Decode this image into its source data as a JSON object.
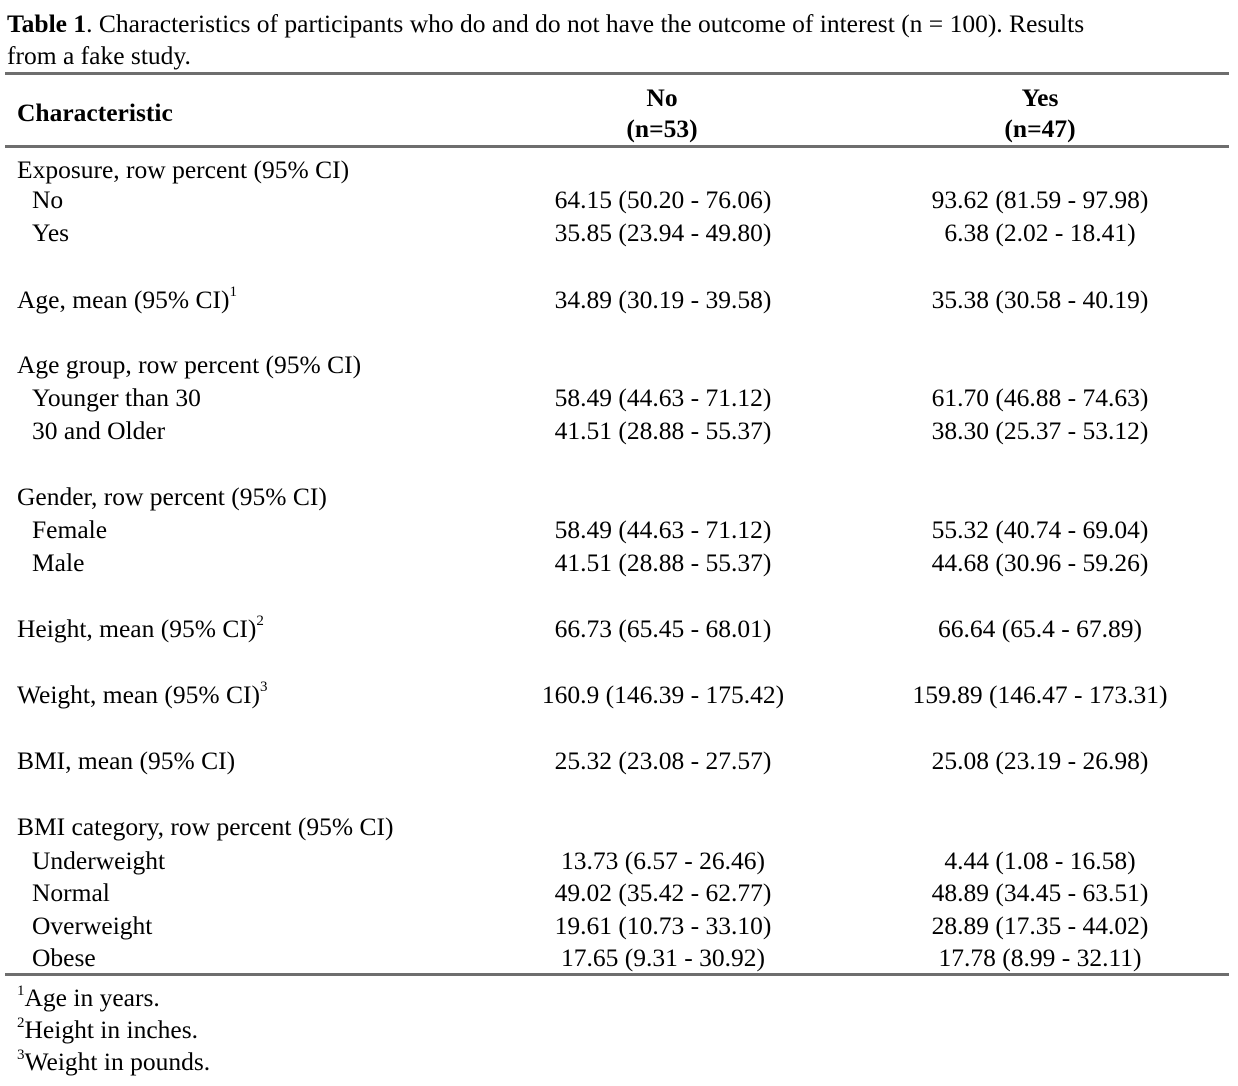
{
  "caption": {
    "label": "Table 1",
    "text_line1": ". Characteristics of participants who do and do not have the outcome of interest (n = 100). Results",
    "text_line2": "from a fake study."
  },
  "header": {
    "characteristic": "Characteristic",
    "no_label": "No",
    "no_n": "(n=53)",
    "yes_label": "Yes",
    "yes_n": "(n=47)"
  },
  "rows": [
    {
      "label": "Exposure, row percent (95% CI)",
      "sup": "",
      "no": "",
      "yes": ""
    },
    {
      "label": "No",
      "sup": "",
      "no": "64.15 (50.20 - 76.06)",
      "yes": "93.62 (81.59 - 97.98)"
    },
    {
      "label": "Yes",
      "sup": "",
      "no": "35.85 (23.94 - 49.80)",
      "yes": "6.38 (2.02 - 18.41)"
    },
    {
      "label": "Age, mean (95% CI)",
      "sup": "1",
      "no": "34.89 (30.19 - 39.58)",
      "yes": "35.38 (30.58 - 40.19)"
    },
    {
      "label": "Age group, row percent (95% CI)",
      "sup": "",
      "no": "",
      "yes": ""
    },
    {
      "label": "Younger than 30",
      "sup": "",
      "no": "58.49 (44.63 - 71.12)",
      "yes": "61.70 (46.88 - 74.63)"
    },
    {
      "label": "30 and Older",
      "sup": "",
      "no": "41.51 (28.88 - 55.37)",
      "yes": "38.30 (25.37 - 53.12)"
    },
    {
      "label": "Gender, row percent (95% CI)",
      "sup": "",
      "no": "",
      "yes": ""
    },
    {
      "label": "Female",
      "sup": "",
      "no": "58.49 (44.63 - 71.12)",
      "yes": "55.32 (40.74 - 69.04)"
    },
    {
      "label": "Male",
      "sup": "",
      "no": "41.51 (28.88 - 55.37)",
      "yes": "44.68 (30.96 - 59.26)"
    },
    {
      "label": "Height, mean (95% CI)",
      "sup": "2",
      "no": "66.73 (65.45 - 68.01)",
      "yes": "66.64 (65.4 - 67.89)"
    },
    {
      "label": "Weight, mean (95% CI)",
      "sup": "3",
      "no": "160.9 (146.39 - 175.42)",
      "yes": "159.89 (146.47 - 173.31)"
    },
    {
      "label": "BMI, mean (95% CI)",
      "sup": "",
      "no": "25.32 (23.08 - 27.57)",
      "yes": "25.08 (23.19 - 26.98)"
    },
    {
      "label": "BMI category, row percent (95% CI)",
      "sup": "",
      "no": "",
      "yes": ""
    },
    {
      "label": "Underweight",
      "sup": "",
      "no": "13.73 (6.57 - 26.46)",
      "yes": "4.44 (1.08 - 16.58)"
    },
    {
      "label": "Normal",
      "sup": "",
      "no": "49.02 (35.42 - 62.77)",
      "yes": "48.89 (34.45 - 63.51)"
    },
    {
      "label": "Overweight",
      "sup": "",
      "no": "19.61 (10.73 - 33.10)",
      "yes": "28.89 (17.35 - 44.02)"
    },
    {
      "label": "Obese",
      "sup": "",
      "no": "17.65 (9.31 - 30.92)",
      "yes": "17.78 (8.99 - 32.11)"
    }
  ],
  "footnotes": [
    {
      "mark": "1",
      "text": "Age in years."
    },
    {
      "mark": "2",
      "text": "Height in inches."
    },
    {
      "mark": "3",
      "text": "Weight in pounds."
    }
  ]
}
